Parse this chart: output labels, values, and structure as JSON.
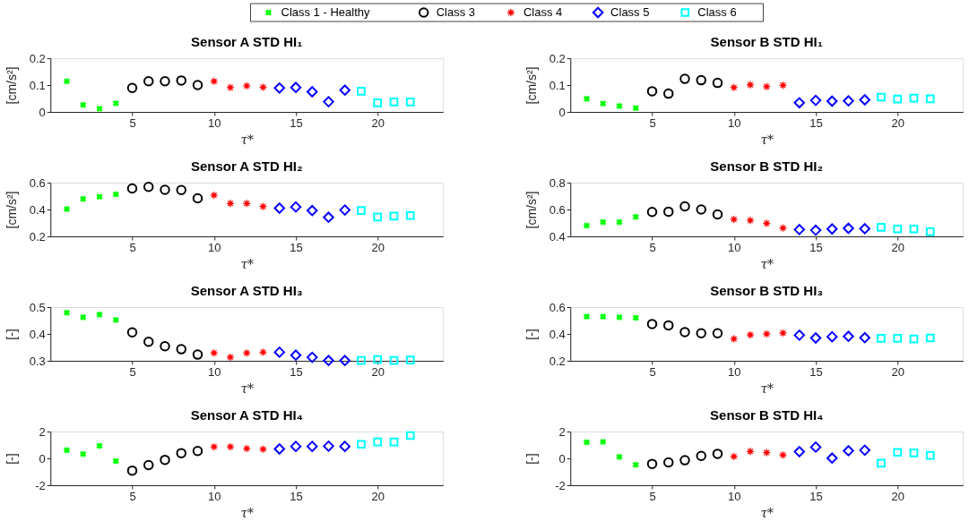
{
  "chart_data": [
    {
      "type": "scatter",
      "title": "Sensor A STD HI₁",
      "xlabel": "τ*",
      "ylabel": "[cm/s²]",
      "xlim": [
        0,
        24
      ],
      "xticks": [
        5,
        10,
        15,
        20
      ],
      "ylim": [
        0,
        0.2
      ],
      "yticks": [
        0,
        0.1,
        0.2
      ],
      "legend": "top",
      "series": [
        {
          "name": "Class 1 - Healthy",
          "color": "#00ff00",
          "marker": "cross",
          "x": [
            1,
            2,
            3,
            4
          ],
          "values": [
            0.114,
            0.026,
            0.012,
            0.032
          ]
        },
        {
          "name": "Class 3",
          "color": "#000000",
          "marker": "circle",
          "x": [
            5,
            6,
            7,
            8,
            9
          ],
          "values": [
            0.089,
            0.114,
            0.114,
            0.117,
            0.1
          ]
        },
        {
          "name": "Class 4",
          "color": "#ff0000",
          "marker": "star",
          "x": [
            10,
            11,
            12,
            13
          ],
          "values": [
            0.114,
            0.091,
            0.097,
            0.092
          ]
        },
        {
          "name": "Class 5",
          "color": "#0000ff",
          "marker": "diamond",
          "x": [
            14,
            15,
            16,
            17,
            18
          ],
          "values": [
            0.089,
            0.091,
            0.075,
            0.038,
            0.081
          ]
        },
        {
          "name": "Class 6",
          "color": "#00ffff",
          "marker": "square",
          "x": [
            19,
            20,
            21,
            22
          ],
          "values": [
            0.077,
            0.034,
            0.037,
            0.037
          ]
        }
      ]
    },
    {
      "type": "scatter",
      "title": "Sensor B STD HI₁",
      "xlabel": "τ*",
      "ylabel": "[cm/s²]",
      "xlim": [
        0,
        24
      ],
      "xticks": [
        5,
        10,
        15,
        20
      ],
      "ylim": [
        0,
        0.2
      ],
      "yticks": [
        0,
        0.1,
        0.2
      ],
      "series": [
        {
          "color": "#00ff00",
          "marker": "cross",
          "x": [
            1,
            2,
            3,
            4
          ],
          "values": [
            0.049,
            0.031,
            0.022,
            0.014
          ]
        },
        {
          "color": "#000000",
          "marker": "circle",
          "x": [
            5,
            6,
            7,
            8,
            9
          ],
          "values": [
            0.077,
            0.068,
            0.123,
            0.118,
            0.108
          ]
        },
        {
          "color": "#ff0000",
          "marker": "star",
          "x": [
            10,
            11,
            12,
            13
          ],
          "values": [
            0.091,
            0.101,
            0.094,
            0.099
          ]
        },
        {
          "color": "#0000ff",
          "marker": "diamond",
          "x": [
            14,
            15,
            16,
            17,
            18
          ],
          "values": [
            0.034,
            0.043,
            0.04,
            0.041,
            0.045
          ]
        },
        {
          "color": "#00ffff",
          "marker": "square",
          "x": [
            19,
            20,
            21,
            22
          ],
          "values": [
            0.055,
            0.048,
            0.051,
            0.049
          ]
        }
      ]
    },
    {
      "type": "scatter",
      "title": "Sensor A STD HI₂",
      "xlabel": "τ*",
      "ylabel": "[cm/s²]",
      "xlim": [
        0,
        24
      ],
      "xticks": [
        5,
        10,
        15,
        20
      ],
      "ylim": [
        0.2,
        0.6
      ],
      "yticks": [
        0.2,
        0.4,
        0.6
      ],
      "series": [
        {
          "color": "#00ff00",
          "marker": "cross",
          "x": [
            1,
            2,
            3,
            4
          ],
          "values": [
            0.403,
            0.479,
            0.495,
            0.513
          ]
        },
        {
          "color": "#000000",
          "marker": "circle",
          "x": [
            5,
            6,
            7,
            8,
            9
          ],
          "values": [
            0.557,
            0.568,
            0.547,
            0.545,
            0.483
          ]
        },
        {
          "color": "#ff0000",
          "marker": "star",
          "x": [
            10,
            11,
            12,
            13
          ],
          "values": [
            0.506,
            0.445,
            0.445,
            0.422
          ]
        },
        {
          "color": "#0000ff",
          "marker": "diamond",
          "x": [
            14,
            15,
            16,
            17,
            18
          ],
          "values": [
            0.41,
            0.419,
            0.392,
            0.342,
            0.396
          ]
        },
        {
          "color": "#00ffff",
          "marker": "square",
          "x": [
            19,
            20,
            21,
            22
          ],
          "values": [
            0.392,
            0.344,
            0.351,
            0.355
          ]
        }
      ]
    },
    {
      "type": "scatter",
      "title": "Sensor B STD HI₂",
      "xlabel": "τ*",
      "ylabel": "[cm/s²]",
      "xlim": [
        0,
        24
      ],
      "xticks": [
        5,
        10,
        15,
        20
      ],
      "ylim": [
        0.4,
        0.8
      ],
      "yticks": [
        0.4,
        0.6,
        0.8
      ],
      "series": [
        {
          "color": "#00ff00",
          "marker": "cross",
          "x": [
            1,
            2,
            3,
            4
          ],
          "values": [
            0.48,
            0.506,
            0.506,
            0.545
          ]
        },
        {
          "color": "#000000",
          "marker": "circle",
          "x": [
            5,
            6,
            7,
            8,
            9
          ],
          "values": [
            0.582,
            0.584,
            0.623,
            0.6,
            0.563
          ]
        },
        {
          "color": "#ff0000",
          "marker": "star",
          "x": [
            10,
            11,
            12,
            13
          ],
          "values": [
            0.526,
            0.519,
            0.497,
            0.462
          ]
        },
        {
          "color": "#0000ff",
          "marker": "diamond",
          "x": [
            14,
            15,
            16,
            17,
            18
          ],
          "values": [
            0.451,
            0.446,
            0.455,
            0.46,
            0.457
          ]
        },
        {
          "color": "#00ffff",
          "marker": "square",
          "x": [
            19,
            20,
            21,
            22
          ],
          "values": [
            0.467,
            0.455,
            0.455,
            0.434
          ]
        }
      ]
    },
    {
      "type": "scatter",
      "title": "Sensor A STD HI₃",
      "xlabel": "τ*",
      "ylabel": "[-]",
      "xlim": [
        0,
        24
      ],
      "xticks": [
        5,
        10,
        15,
        20
      ],
      "ylim": [
        0.3,
        0.5
      ],
      "yticks": [
        0.3,
        0.4,
        0.5
      ],
      "series": [
        {
          "color": "#00ff00",
          "marker": "cross",
          "x": [
            1,
            2,
            3,
            4
          ],
          "values": [
            0.479,
            0.462,
            0.472,
            0.452
          ]
        },
        {
          "color": "#000000",
          "marker": "circle",
          "x": [
            5,
            6,
            7,
            8,
            9
          ],
          "values": [
            0.406,
            0.371,
            0.354,
            0.343,
            0.323
          ]
        },
        {
          "color": "#ff0000",
          "marker": "star",
          "x": [
            10,
            11,
            12,
            13
          ],
          "values": [
            0.329,
            0.313,
            0.329,
            0.332
          ]
        },
        {
          "color": "#0000ff",
          "marker": "diamond",
          "x": [
            14,
            15,
            16,
            17,
            18
          ],
          "values": [
            0.332,
            0.321,
            0.313,
            0.301,
            0.301
          ]
        },
        {
          "color": "#00ffff",
          "marker": "square",
          "x": [
            19,
            20,
            21,
            22
          ],
          "values": [
            0.301,
            0.305,
            0.301,
            0.303
          ]
        }
      ]
    },
    {
      "type": "scatter",
      "title": "Sensor B STD HI₃",
      "xlabel": "τ*",
      "ylabel": "[-]",
      "xlim": [
        0,
        24
      ],
      "xticks": [
        5,
        10,
        15,
        20
      ],
      "ylim": [
        0.2,
        0.6
      ],
      "yticks": [
        0.2,
        0.4,
        0.6
      ],
      "series": [
        {
          "color": "#00ff00",
          "marker": "cross",
          "x": [
            1,
            2,
            3,
            4
          ],
          "values": [
            0.529,
            0.529,
            0.524,
            0.52
          ]
        },
        {
          "color": "#000000",
          "marker": "circle",
          "x": [
            5,
            6,
            7,
            8,
            9
          ],
          "values": [
            0.474,
            0.464,
            0.414,
            0.405,
            0.405
          ]
        },
        {
          "color": "#ff0000",
          "marker": "star",
          "x": [
            10,
            11,
            12,
            13
          ],
          "values": [
            0.363,
            0.393,
            0.4,
            0.407
          ]
        },
        {
          "color": "#0000ff",
          "marker": "diamond",
          "x": [
            14,
            15,
            16,
            17,
            18
          ],
          "values": [
            0.391,
            0.37,
            0.379,
            0.382,
            0.372
          ]
        },
        {
          "color": "#00ffff",
          "marker": "square",
          "x": [
            19,
            20,
            21,
            22
          ],
          "values": [
            0.368,
            0.368,
            0.363,
            0.37
          ]
        }
      ]
    },
    {
      "type": "scatter",
      "title": "Sensor A STD HI₄",
      "xlabel": "τ*",
      "ylabel": "[-]",
      "xlim": [
        0,
        24
      ],
      "xticks": [
        5,
        10,
        15,
        20
      ],
      "ylim": [
        -2,
        2
      ],
      "yticks": [
        -2,
        0,
        2
      ],
      "series": [
        {
          "color": "#00ff00",
          "marker": "cross",
          "x": [
            1,
            2,
            3,
            4
          ],
          "values": [
            0.61,
            0.32,
            0.93,
            -0.2
          ]
        },
        {
          "color": "#000000",
          "marker": "circle",
          "x": [
            5,
            6,
            7,
            8,
            9
          ],
          "values": [
            -0.91,
            -0.5,
            -0.11,
            0.39,
            0.55
          ]
        },
        {
          "color": "#ff0000",
          "marker": "star",
          "x": [
            10,
            11,
            12,
            13
          ],
          "values": [
            0.86,
            0.86,
            0.73,
            0.68
          ]
        },
        {
          "color": "#0000ff",
          "marker": "diamond",
          "x": [
            14,
            15,
            16,
            17,
            18
          ],
          "values": [
            0.7,
            0.89,
            0.89,
            0.91,
            0.89
          ]
        },
        {
          "color": "#00ffff",
          "marker": "square",
          "x": [
            19,
            20,
            21,
            22
          ],
          "values": [
            1.05,
            1.23,
            1.23,
            1.7
          ]
        }
      ]
    },
    {
      "type": "scatter",
      "title": "Sensor B STD HI₄",
      "xlabel": "τ*",
      "ylabel": "[-]",
      "xlim": [
        0,
        24
      ],
      "xticks": [
        5,
        10,
        15,
        20
      ],
      "ylim": [
        -2,
        2
      ],
      "yticks": [
        -2,
        0,
        2
      ],
      "series": [
        {
          "color": "#00ff00",
          "marker": "cross",
          "x": [
            1,
            2,
            3,
            4
          ],
          "values": [
            1.2,
            1.23,
            0.11,
            -0.48
          ]
        },
        {
          "color": "#000000",
          "marker": "circle",
          "x": [
            5,
            6,
            7,
            8,
            9
          ],
          "values": [
            -0.41,
            -0.3,
            -0.14,
            0.18,
            0.34
          ]
        },
        {
          "color": "#ff0000",
          "marker": "star",
          "x": [
            10,
            11,
            12,
            13
          ],
          "values": [
            0.14,
            0.52,
            0.43,
            0.25
          ]
        },
        {
          "color": "#0000ff",
          "marker": "diamond",
          "x": [
            14,
            15,
            16,
            17,
            18
          ],
          "values": [
            0.5,
            0.84,
            0.02,
            0.57,
            0.61
          ]
        },
        {
          "color": "#00ffff",
          "marker": "square",
          "x": [
            19,
            20,
            21,
            22
          ],
          "values": [
            -0.36,
            0.45,
            0.41,
            0.23
          ]
        }
      ]
    }
  ]
}
